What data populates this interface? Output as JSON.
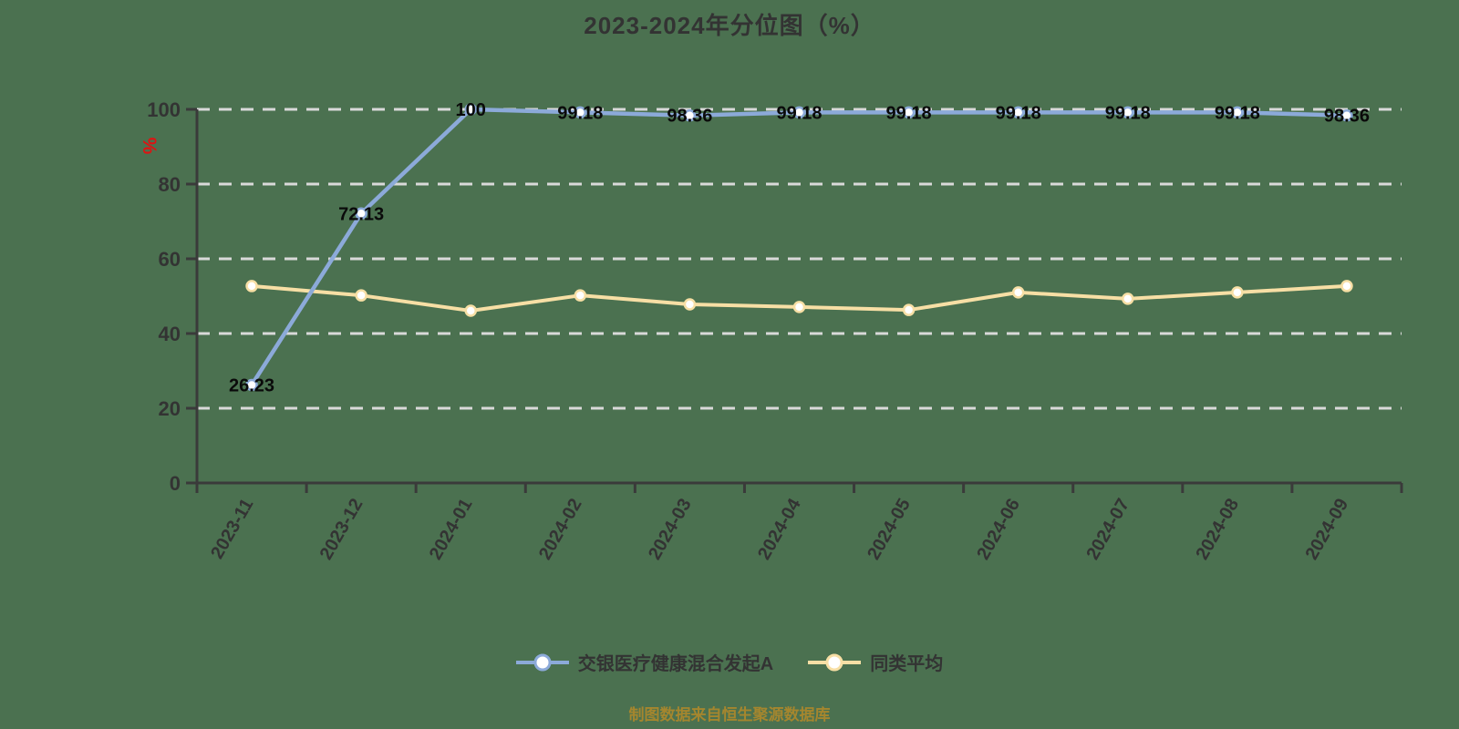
{
  "title": "2023-2024年分位图（%）",
  "footer": "制图数据来自恒生聚源数据库",
  "colors": {
    "background": "#4b7150",
    "title_text": "#333333",
    "axis": "#3a3a3a",
    "tick_label": "#333333",
    "gridline": "#d9d9d9",
    "data_label": "#0a0a0a",
    "y_axis_name": "#e01212",
    "footer_text": "#a5862e",
    "legend_text": "#333333",
    "marker_fill": "#ffffff"
  },
  "chart_data": {
    "type": "line",
    "title": "2023-2024年分位图（%）",
    "xlabel": "",
    "ylabel": "%",
    "ylim": [
      0,
      100
    ],
    "yticks": [
      0,
      20,
      40,
      60,
      80,
      100
    ],
    "grid": "horizontal-dashed-white",
    "legend_position": "bottom",
    "categories": [
      "2023-11",
      "2023-12",
      "2024-01",
      "2024-02",
      "2024-03",
      "2024-04",
      "2024-05",
      "2024-06",
      "2024-07",
      "2024-08",
      "2024-09"
    ],
    "series": [
      {
        "name": "交银医疗健康混合发起A",
        "color": "#8caad9",
        "values": [
          26.23,
          72.13,
          100,
          99.18,
          98.36,
          99.18,
          99.18,
          99.18,
          99.18,
          99.18,
          98.36
        ],
        "labels": [
          "26.23",
          "72.13",
          "100",
          "99.18",
          "98.36",
          "99.18",
          "99.18",
          "99.18",
          "99.18",
          "99.18",
          "98.36"
        ],
        "show_point_labels": true
      },
      {
        "name": "同类平均",
        "color": "#f7dfa5",
        "values": [
          52.7,
          50.2,
          46.1,
          50.2,
          47.8,
          47.1,
          46.3,
          51.0,
          49.3,
          51.0,
          52.7
        ],
        "labels": [],
        "show_point_labels": false
      }
    ]
  }
}
